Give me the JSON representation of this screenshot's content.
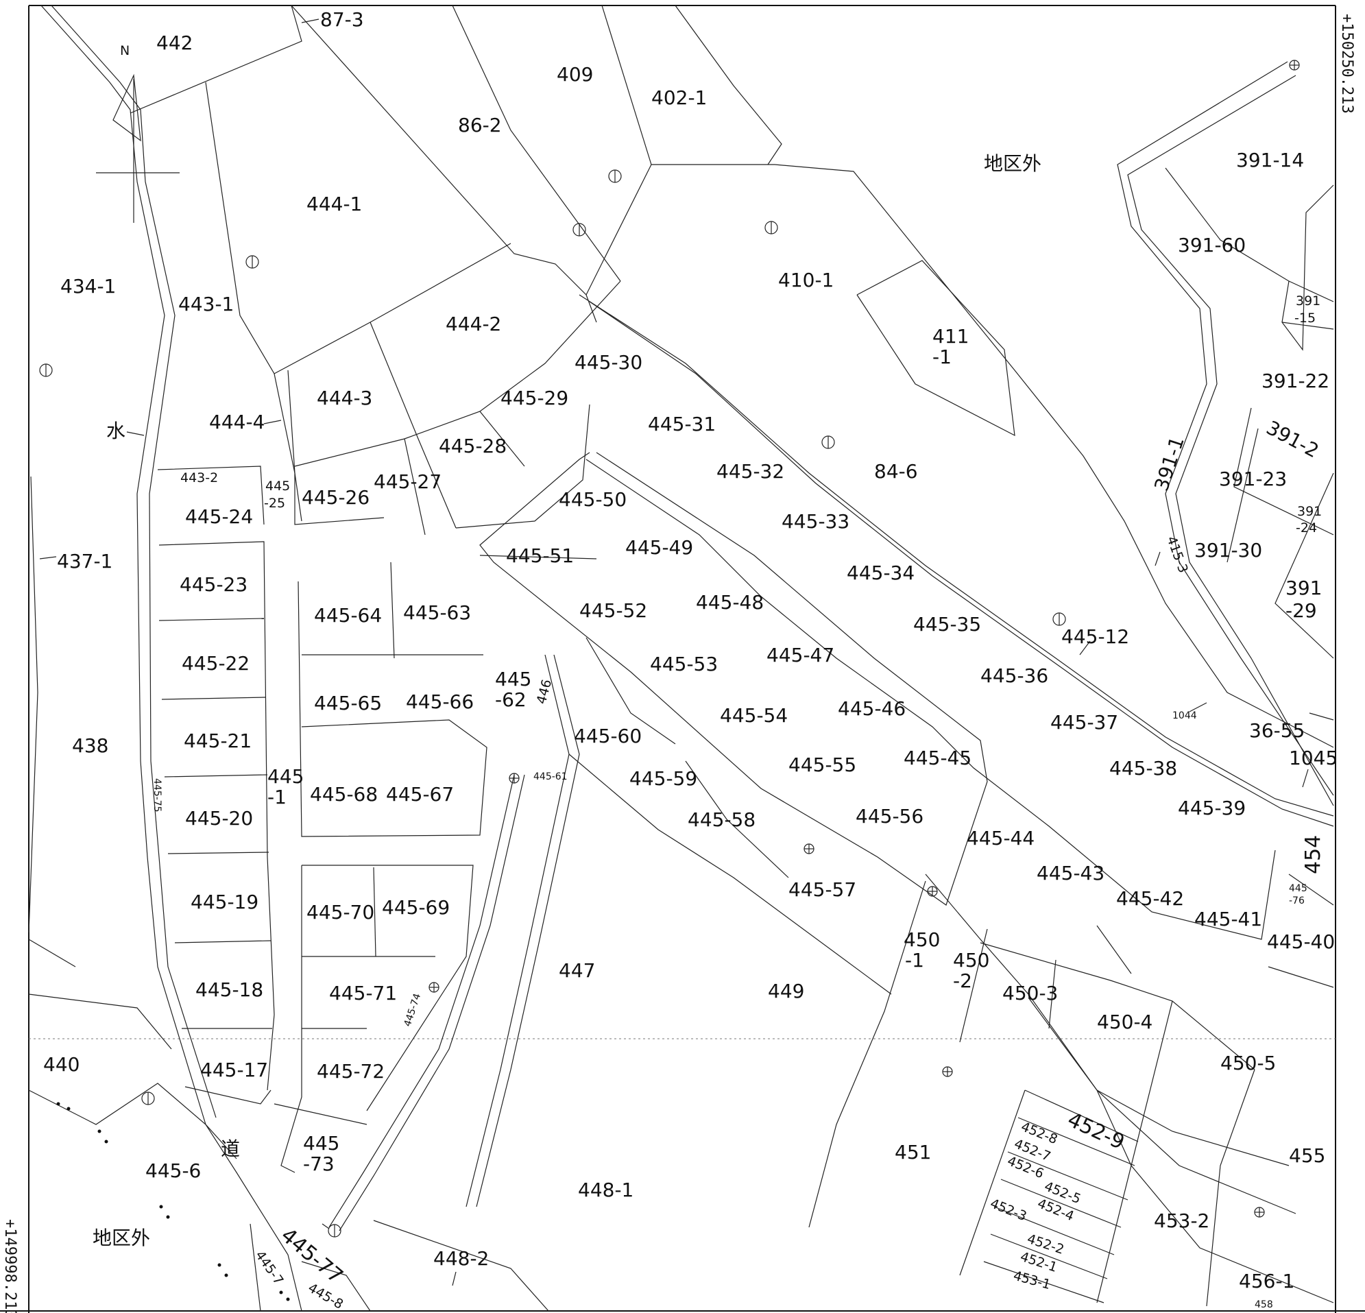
{
  "map": {
    "north_label": "N",
    "coord_right": "+150250.213",
    "coord_left": "+149998.213",
    "outside_district": "地区外",
    "water_label": "水",
    "road_label": "道",
    "parcels": {
      "p442": "442",
      "p87_3": "87-3",
      "p409": "409",
      "p402_1": "402-1",
      "p86_2": "86-2",
      "p444_1": "444-1",
      "p434_1": "434-1",
      "p443_1": "443-1",
      "p444_2": "444-2",
      "p410_1": "410-1",
      "p411_1a": "411",
      "p411_1b": "-1",
      "p391_14": "391-14",
      "p391_60": "391-60",
      "p391_15a": "391",
      "p391_15b": "-15",
      "p391_22": "391-22",
      "p391_2": "391-2",
      "p391_1": "391-1",
      "p391_23": "391-23",
      "p391_24a": "391",
      "p391_24b": "-24",
      "p415_3": "415-3",
      "p391_30": "391-30",
      "p391_29a": "391",
      "p391_29b": "-29",
      "p444_3": "444-3",
      "p444_4": "444-4",
      "p445_30": "445-30",
      "p445_29": "445-29",
      "p445_28": "445-28",
      "p445_31": "445-31",
      "p445_32": "445-32",
      "p84_6": "84-6",
      "p443_2": "443-2",
      "p445_25a": "445",
      "p445_25b": "-25",
      "p445_26": "445-26",
      "p445_27": "445-27",
      "p445_24": "445-24",
      "p437_1": "437-1",
      "p445_50": "445-50",
      "p445_51": "445-51",
      "p445_49": "445-49",
      "p445_33": "445-33",
      "p445_34": "445-34",
      "p445_35": "445-35",
      "p445_36": "445-36",
      "p445_12": "445-12",
      "p445_23": "445-23",
      "p445_64": "445-64",
      "p445_63": "445-63",
      "p445_52": "445-52",
      "p445_48": "445-48",
      "p445_47": "445-47",
      "p445_53": "445-53",
      "p445_22": "445-22",
      "p445_62a": "445",
      "p445_62b": "-62",
      "p446": "446",
      "p445_65": "445-65",
      "p445_66": "445-66",
      "p445_54": "445-54",
      "p445_46": "445-46",
      "p445_37": "445-37",
      "p1044": "1044",
      "p36_55": "36-55",
      "p438": "438",
      "p445_21": "445-21",
      "p445_60": "445-60",
      "p445_45": "445-45",
      "p1045": "1045",
      "p445_1a": "445",
      "p445_1b": "-1",
      "p445_75": "445-75",
      "p445_61": "445-61",
      "p445_68": "445-68",
      "p445_67": "445-67",
      "p445_59": "445-59",
      "p445_55": "445-55",
      "p445_38": "445-38",
      "p445_20": "445-20",
      "p445_39": "445-39",
      "p445_58": "445-58",
      "p445_56": "445-56",
      "p445_44": "445-44",
      "p454": "454",
      "p445_43": "445-43",
      "p445_19": "445-19",
      "p445_57": "445-57",
      "p445_42": "445-42",
      "p445_76a": "445",
      "p445_76b": "-76",
      "p445_70": "445-70",
      "p445_69": "445-69",
      "p445_41": "445-41",
      "p450_1a": "450",
      "p450_1b": "-1",
      "p450_2a": "450",
      "p450_2b": "-2",
      "p445_40": "445-40",
      "p447": "447",
      "p445_18": "445-18",
      "p445_71": "445-71",
      "p449": "449",
      "p450_3": "450-3",
      "p445_74": "445-74",
      "p450_4": "450-4",
      "p440": "440",
      "p445_17": "445-17",
      "p445_72": "445-72",
      "p450_5": "450-5",
      "p452_9": "452-9",
      "p452_8": "452-8",
      "p452_7": "452-7",
      "p452_6": "452-6",
      "p445_6": "445-6",
      "p445_73a": "445",
      "p445_73b": "-73",
      "p451": "451",
      "p455": "455",
      "p448_1": "448-1",
      "p452_5": "452-5",
      "p452_4": "452-4",
      "p452_3": "452-3",
      "p453_2": "453-2",
      "p445_77": "445-77",
      "p452_2": "452-2",
      "p452_1": "452-1",
      "p448_2": "448-2",
      "p456_1": "456-1",
      "p453_1": "453-1",
      "p445_7": "445-7",
      "p445_8": "445-8",
      "p458": "458"
    }
  }
}
